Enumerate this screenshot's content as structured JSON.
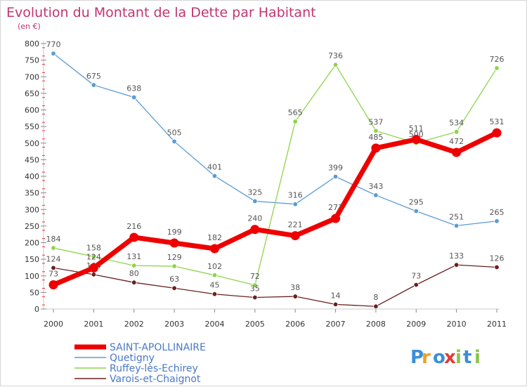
{
  "chart_data": {
    "type": "line",
    "title": "Evolution du Montant de la Dette par Habitant",
    "subtitle": "(en €)",
    "x": [
      "2000",
      "2001",
      "2002",
      "2003",
      "2004",
      "2005",
      "2006",
      "2007",
      "2008",
      "2009",
      "2010",
      "2011"
    ],
    "ylim": [
      0,
      800
    ],
    "yticks": [
      0,
      50,
      100,
      150,
      200,
      250,
      300,
      350,
      400,
      450,
      500,
      550,
      600,
      650,
      700,
      750,
      800
    ],
    "grid": false,
    "legend_placement": "bottom-left",
    "series": [
      {
        "name": "SAINT-APOLLINAIRE",
        "color": "#ee0000",
        "values": [
          73,
          124,
          216,
          199,
          182,
          240,
          221,
          273,
          485,
          511,
          472,
          531
        ]
      },
      {
        "name": "Quetigny",
        "color": "#5b9bd5",
        "values": [
          770,
          675,
          638,
          505,
          401,
          325,
          316,
          399,
          343,
          295,
          251,
          265
        ]
      },
      {
        "name": "Ruffey-lès-Echirey",
        "color": "#8ed44a",
        "values": [
          184,
          158,
          131,
          129,
          102,
          72,
          565,
          736,
          537,
          500,
          534,
          726
        ]
      },
      {
        "name": "Varois-et-Chaignot",
        "color": "#6b1f1f",
        "values": [
          124,
          104,
          80,
          63,
          45,
          35,
          38,
          14,
          8,
          73,
          133,
          126
        ]
      }
    ]
  },
  "brand": {
    "text": "Proxiti",
    "letters": [
      "P",
      "r",
      "o",
      "x",
      "i",
      "t",
      "i"
    ],
    "colors": [
      "#3a8fd9",
      "#f0a020",
      "#3a8fd9",
      "#e53935",
      "#8bc34a",
      "#3a8fd9",
      "#8bc34a"
    ]
  }
}
